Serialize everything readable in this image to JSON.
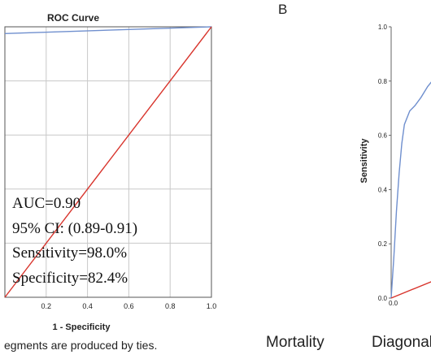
{
  "chart_data": [
    {
      "panel": "",
      "type": "line",
      "title": "ROC Curve",
      "xlabel": "1 - Specificity",
      "ylabel": "",
      "xlim": [
        0.0,
        1.0
      ],
      "ylim": [
        0.0,
        1.0
      ],
      "x_ticks": [
        "0.2",
        "0.4",
        "0.6",
        "0.8",
        "1.0"
      ],
      "y_ticks": [],
      "grid": true,
      "series": [
        {
          "name": "",
          "color": "#6f8fce",
          "x": [
            0.0,
            1.0
          ],
          "y": [
            0.975,
            1.0
          ]
        },
        {
          "name": "",
          "color": "#d8342c",
          "x": [
            0.0,
            1.0
          ],
          "y": [
            0.0,
            1.0
          ]
        }
      ],
      "annotations": [
        "AUC=0.90",
        "95% CI: (0.89-0.91)",
        "Sensitivity=98.0%",
        "Specificity=82.4%"
      ],
      "footnote": "egments are produced by ties.",
      "caption": "Mortality"
    },
    {
      "panel": "B",
      "type": "line",
      "title": "",
      "xlabel": "",
      "ylabel": "Sensitivity",
      "xlim": [
        0.0,
        0.18
      ],
      "ylim": [
        0.0,
        1.0
      ],
      "x_ticks": [
        "0.0"
      ],
      "y_ticks": [
        "0.0",
        "0.2",
        "0.4",
        "0.6",
        "0.8",
        "1.0"
      ],
      "grid": false,
      "series": [
        {
          "name": "",
          "color": "#6f8fce",
          "x": [
            0.0,
            0.004,
            0.008,
            0.012,
            0.016,
            0.02,
            0.028,
            0.036,
            0.045,
            0.055,
            0.065,
            0.08,
            0.1,
            0.115,
            0.13,
            0.15,
            0.165,
            0.18
          ],
          "y": [
            0.0,
            0.15,
            0.32,
            0.46,
            0.57,
            0.64,
            0.69,
            0.71,
            0.74,
            0.78,
            0.81,
            0.835,
            0.84,
            0.845,
            0.85,
            0.855,
            0.86,
            0.862
          ]
        },
        {
          "name": "",
          "color": "#d8342c",
          "x": [
            0.0,
            0.18
          ],
          "y": [
            0.0,
            0.18
          ]
        }
      ],
      "caption": "Diagonal"
    }
  ]
}
